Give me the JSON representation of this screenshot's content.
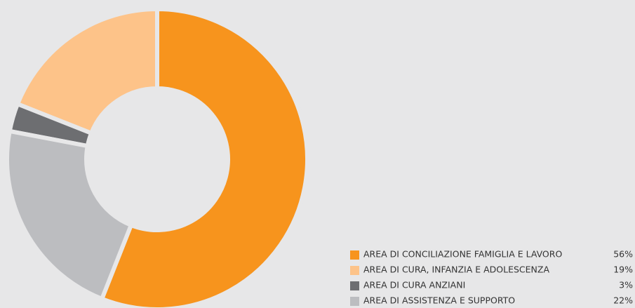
{
  "chart_data": {
    "type": "donut",
    "categories": [
      "AREA DI CONCILIAZIONE FAMIGLIA E LAVORO",
      "AREA DI CURA, INFANZIA E ADOLESCENZA",
      "AREA DI CURA ANZIANI",
      "AREA DI ASSISTENZA E SUPPORTO"
    ],
    "values": [
      56,
      19,
      3,
      22
    ],
    "value_labels": [
      "56%",
      "19%",
      "3%",
      "22%"
    ],
    "colors": [
      "#f7941d",
      "#fdc389",
      "#6d6e71",
      "#bcbdc0"
    ],
    "legend": "bottom-right"
  }
}
